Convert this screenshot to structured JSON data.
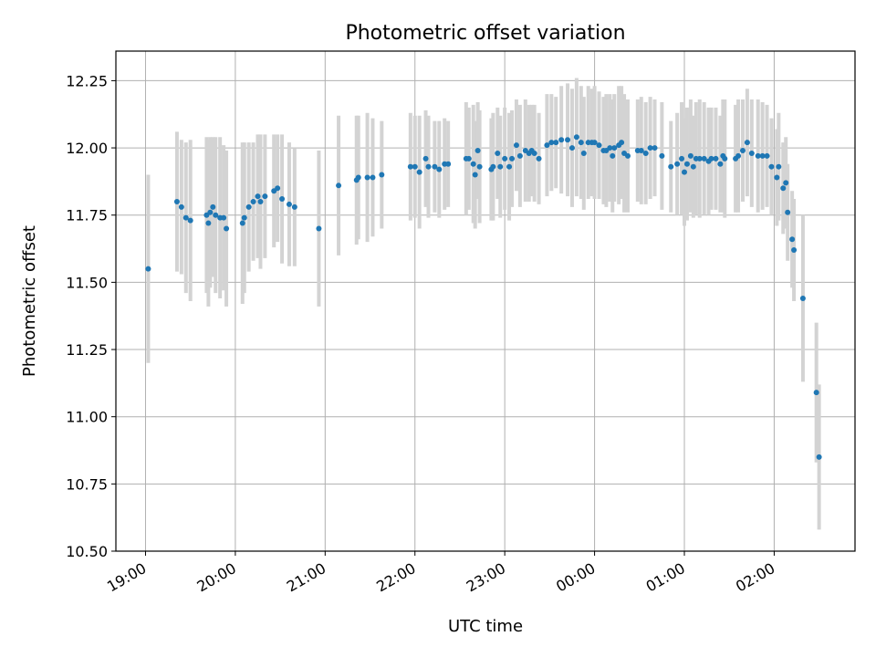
{
  "chart_data": {
    "type": "scatter",
    "title": "Photometric offset variation",
    "xlabel": "UTC time",
    "ylabel": "Photometric offset",
    "x_unit": "hours",
    "xlim": [
      18.67,
      26.9
    ],
    "ylim": [
      10.5,
      12.36
    ],
    "grid": true,
    "legend": "none",
    "x_ticks": [
      {
        "value": 19,
        "label": "19:00"
      },
      {
        "value": 20,
        "label": "20:00"
      },
      {
        "value": 21,
        "label": "21:00"
      },
      {
        "value": 22,
        "label": "22:00"
      },
      {
        "value": 23,
        "label": "23:00"
      },
      {
        "value": 24,
        "label": "00:00"
      },
      {
        "value": 25,
        "label": "01:00"
      },
      {
        "value": 26,
        "label": "02:00"
      }
    ],
    "y_ticks": [
      {
        "value": 10.5,
        "label": "10.50"
      },
      {
        "value": 10.75,
        "label": "10.75"
      },
      {
        "value": 11.0,
        "label": "11.00"
      },
      {
        "value": 11.25,
        "label": "11.25"
      },
      {
        "value": 11.5,
        "label": "11.50"
      },
      {
        "value": 11.75,
        "label": "11.75"
      },
      {
        "value": 12.0,
        "label": "12.00"
      },
      {
        "value": 12.25,
        "label": "12.25"
      }
    ],
    "colors": {
      "point": "#1f77b4",
      "errorbar": "#d3d3d3",
      "grid": "#b0b0b0"
    },
    "series": [
      {
        "points": [
          [
            19.03,
            11.55,
            0.35
          ],
          [
            19.35,
            11.8,
            0.26
          ],
          [
            19.4,
            11.78,
            0.25
          ],
          [
            19.45,
            11.74,
            0.28
          ],
          [
            19.5,
            11.73,
            0.3
          ],
          [
            19.68,
            11.75,
            0.29
          ],
          [
            19.7,
            11.72,
            0.31
          ],
          [
            19.72,
            11.76,
            0.28
          ],
          [
            19.75,
            11.78,
            0.26
          ],
          [
            19.78,
            11.75,
            0.29
          ],
          [
            19.83,
            11.74,
            0.3
          ],
          [
            19.87,
            11.74,
            0.27
          ],
          [
            19.9,
            11.7,
            0.29
          ],
          [
            20.08,
            11.72,
            0.3
          ],
          [
            20.1,
            11.74,
            0.28
          ],
          [
            20.15,
            11.78,
            0.24
          ],
          [
            20.2,
            11.8,
            0.22
          ],
          [
            20.25,
            11.82,
            0.23
          ],
          [
            20.28,
            11.8,
            0.25
          ],
          [
            20.33,
            11.82,
            0.23
          ],
          [
            20.43,
            11.84,
            0.21
          ],
          [
            20.47,
            11.85,
            0.2
          ],
          [
            20.52,
            11.81,
            0.24
          ],
          [
            20.6,
            11.79,
            0.23
          ],
          [
            20.66,
            11.78,
            0.22
          ],
          [
            20.93,
            11.7,
            0.29
          ],
          [
            21.15,
            11.86,
            0.26
          ],
          [
            21.35,
            11.88,
            0.24
          ],
          [
            21.37,
            11.89,
            0.23
          ],
          [
            21.47,
            11.89,
            0.24
          ],
          [
            21.53,
            11.89,
            0.22
          ],
          [
            21.63,
            11.9,
            0.2
          ],
          [
            21.95,
            11.93,
            0.2
          ],
          [
            22.0,
            11.93,
            0.19
          ],
          [
            22.05,
            11.91,
            0.21
          ],
          [
            22.12,
            11.96,
            0.18
          ],
          [
            22.15,
            11.93,
            0.19
          ],
          [
            22.22,
            11.93,
            0.17
          ],
          [
            22.27,
            11.92,
            0.18
          ],
          [
            22.33,
            11.94,
            0.17
          ],
          [
            22.37,
            11.94,
            0.16
          ],
          [
            22.57,
            11.96,
            0.21
          ],
          [
            22.6,
            11.96,
            0.19
          ],
          [
            22.65,
            11.94,
            0.22
          ],
          [
            22.67,
            11.9,
            0.2
          ],
          [
            22.7,
            11.99,
            0.18
          ],
          [
            22.72,
            11.93,
            0.21
          ],
          [
            22.85,
            11.92,
            0.19
          ],
          [
            22.87,
            11.93,
            0.2
          ],
          [
            22.92,
            11.98,
            0.17
          ],
          [
            22.95,
            11.93,
            0.19
          ],
          [
            23.0,
            11.96,
            0.19
          ],
          [
            23.05,
            11.93,
            0.2
          ],
          [
            23.08,
            11.96,
            0.18
          ],
          [
            23.13,
            12.01,
            0.17
          ],
          [
            23.17,
            11.97,
            0.19
          ],
          [
            23.23,
            11.99,
            0.19
          ],
          [
            23.27,
            11.98,
            0.18
          ],
          [
            23.3,
            11.99,
            0.17
          ],
          [
            23.33,
            11.98,
            0.18
          ],
          [
            23.38,
            11.96,
            0.17
          ],
          [
            23.47,
            12.01,
            0.19
          ],
          [
            23.52,
            12.02,
            0.18
          ],
          [
            23.57,
            12.02,
            0.17
          ],
          [
            23.63,
            12.03,
            0.2
          ],
          [
            23.7,
            12.03,
            0.21
          ],
          [
            23.75,
            12.0,
            0.22
          ],
          [
            23.8,
            12.04,
            0.22
          ],
          [
            23.85,
            12.02,
            0.21
          ],
          [
            23.88,
            11.98,
            0.21
          ],
          [
            23.93,
            12.02,
            0.21
          ],
          [
            23.97,
            12.02,
            0.2
          ],
          [
            24.0,
            12.02,
            0.21
          ],
          [
            24.05,
            12.01,
            0.2
          ],
          [
            24.1,
            11.99,
            0.2
          ],
          [
            24.13,
            11.99,
            0.21
          ],
          [
            24.17,
            12.0,
            0.2
          ],
          [
            24.2,
            11.97,
            0.21
          ],
          [
            24.22,
            12.0,
            0.2
          ],
          [
            24.27,
            12.01,
            0.22
          ],
          [
            24.3,
            12.02,
            0.21
          ],
          [
            24.33,
            11.98,
            0.22
          ],
          [
            24.37,
            11.97,
            0.21
          ],
          [
            24.48,
            11.99,
            0.19
          ],
          [
            24.52,
            11.99,
            0.2
          ],
          [
            24.57,
            11.98,
            0.19
          ],
          [
            24.62,
            12.0,
            0.19
          ],
          [
            24.67,
            12.0,
            0.18
          ],
          [
            24.75,
            11.97,
            0.2
          ],
          [
            24.85,
            11.93,
            0.17
          ],
          [
            24.92,
            11.94,
            0.19
          ],
          [
            24.97,
            11.96,
            0.21
          ],
          [
            25.0,
            11.91,
            0.2
          ],
          [
            25.03,
            11.94,
            0.21
          ],
          [
            25.07,
            11.97,
            0.21
          ],
          [
            25.1,
            11.93,
            0.19
          ],
          [
            25.13,
            11.96,
            0.21
          ],
          [
            25.17,
            11.96,
            0.22
          ],
          [
            25.22,
            11.96,
            0.21
          ],
          [
            25.27,
            11.95,
            0.2
          ],
          [
            25.3,
            11.96,
            0.19
          ],
          [
            25.35,
            11.96,
            0.19
          ],
          [
            25.4,
            11.94,
            0.18
          ],
          [
            25.43,
            11.97,
            0.21
          ],
          [
            25.45,
            11.96,
            0.22
          ],
          [
            25.57,
            11.96,
            0.2
          ],
          [
            25.6,
            11.97,
            0.21
          ],
          [
            25.65,
            11.99,
            0.19
          ],
          [
            25.7,
            12.02,
            0.2
          ],
          [
            25.75,
            11.98,
            0.2
          ],
          [
            25.82,
            11.97,
            0.21
          ],
          [
            25.87,
            11.97,
            0.2
          ],
          [
            25.92,
            11.97,
            0.19
          ],
          [
            25.97,
            11.93,
            0.18
          ],
          [
            26.03,
            11.89,
            0.18
          ],
          [
            26.05,
            11.93,
            0.2
          ],
          [
            26.1,
            11.85,
            0.17
          ],
          [
            26.13,
            11.87,
            0.17
          ],
          [
            26.15,
            11.76,
            0.18
          ],
          [
            26.2,
            11.66,
            0.18
          ],
          [
            26.22,
            11.62,
            0.19
          ],
          [
            26.32,
            11.44,
            0.31
          ],
          [
            26.47,
            11.09,
            0.26
          ],
          [
            26.5,
            10.85,
            0.27
          ]
        ]
      }
    ]
  }
}
